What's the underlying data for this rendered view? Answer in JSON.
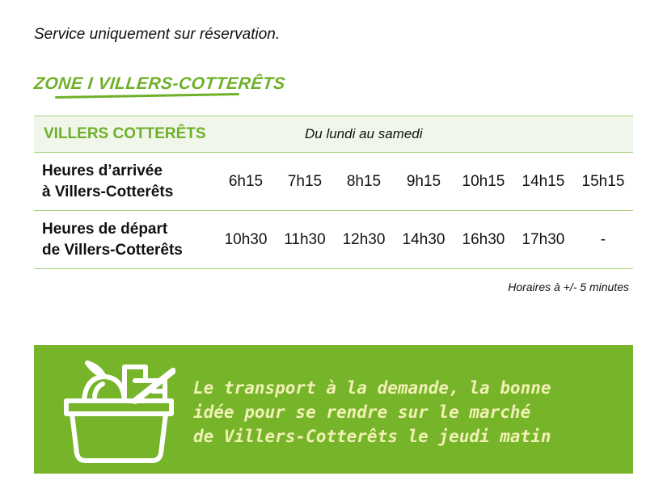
{
  "note": "Service uniquement sur réservation.",
  "zone_title": "ZONE I VILLERS-COTTERÊTS",
  "table": {
    "city": "VILLERS COTTERÊTS",
    "days": "Du lundi au samedi",
    "rows": [
      {
        "label1": "Heures d’arrivée",
        "label2": "à  Villers-Cotterêts",
        "times": [
          "6h15",
          "7h15",
          "8h15",
          "9h15",
          "10h15",
          "14h15",
          "15h15"
        ]
      },
      {
        "label1": "Heures de départ",
        "label2": "de Villers-Cotterêts",
        "times": [
          "10h30",
          "11h30",
          "12h30",
          "14h30",
          "16h30",
          "17h30",
          "-"
        ]
      }
    ]
  },
  "footnote": "Horaires à +/- 5 minutes",
  "banner": {
    "text": "Le transport à la demande, la bonne\nidée pour se rendre sur le marché\nde Villers-Cotterêts le jeudi matin",
    "icon": "basket-icon",
    "color": "#76b52a"
  }
}
